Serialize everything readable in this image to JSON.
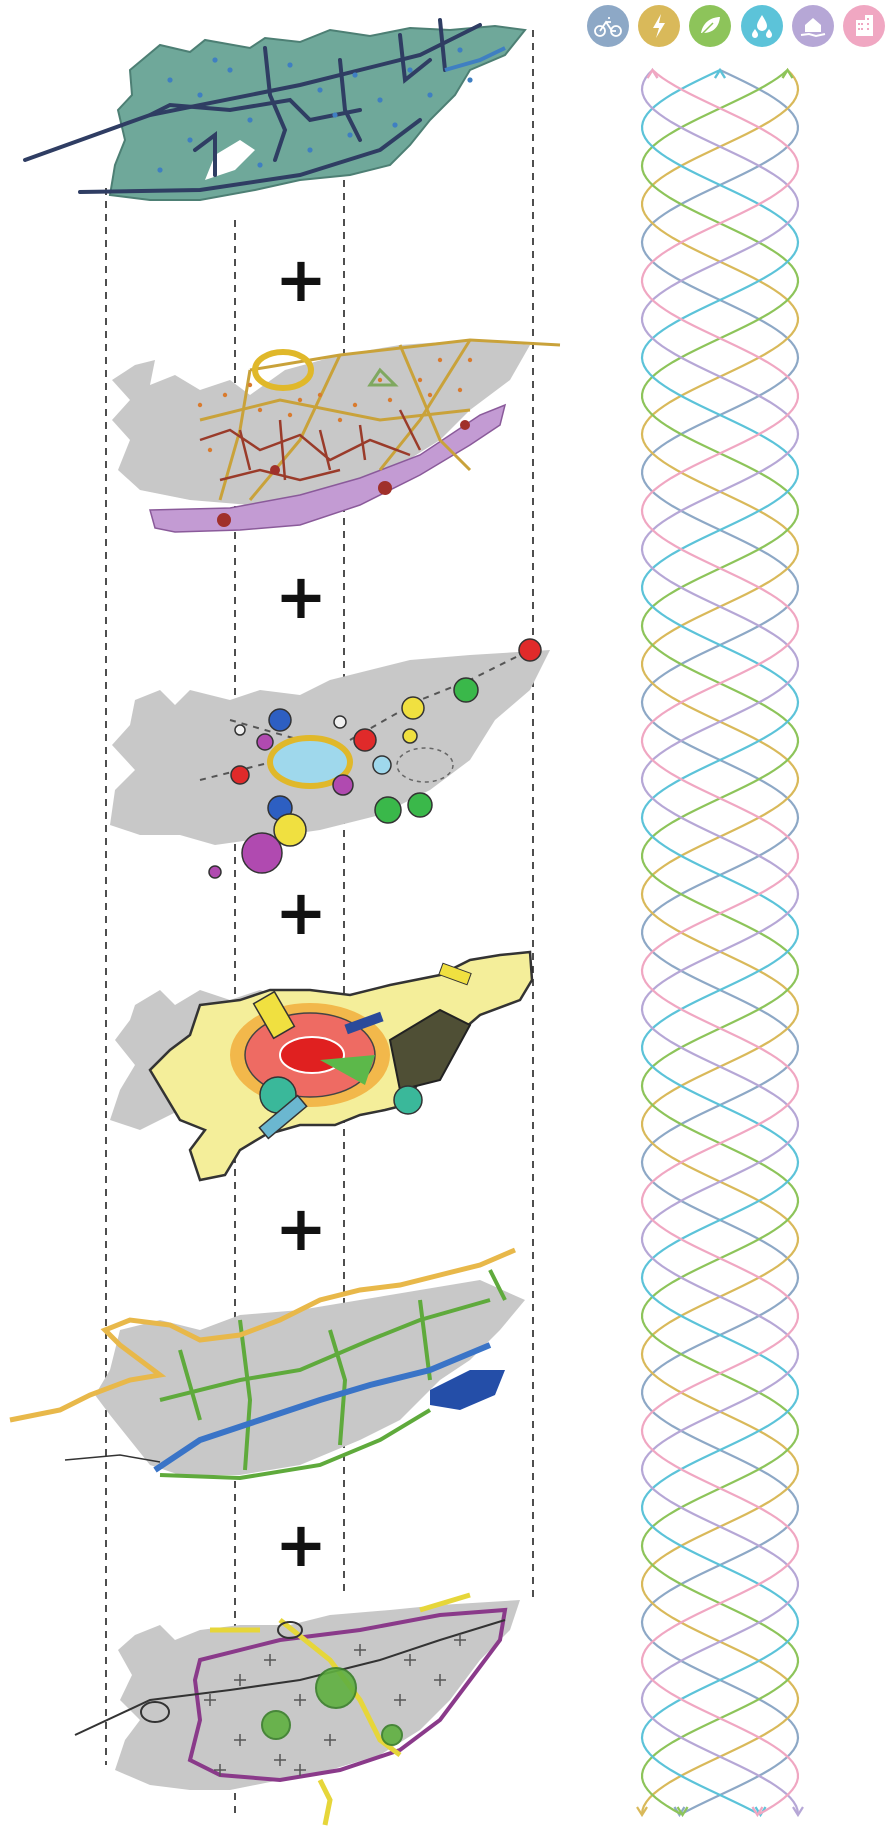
{
  "layers": [
    {
      "id": "water-network",
      "colors": {
        "base": "#6fa89a",
        "line": "#2f3d63",
        "dot": "#3f7fc2",
        "green": "#6aa84f"
      }
    },
    {
      "id": "ecological-network",
      "colors": {
        "base": "#c8c8c8",
        "ring": "#e0b82a",
        "road": "#c9a23a",
        "path": "#9a3b2a",
        "band": "#c39bd3",
        "dots": "#d97b2e"
      }
    },
    {
      "id": "energy-nodes",
      "colors": {
        "base": "#c8c8c8",
        "center": "#9fd8ec",
        "ring": "#e0b82a"
      }
    },
    {
      "id": "land-use-zones",
      "colors": {
        "outer": "#f4ee9a",
        "mid": "#f2b84b",
        "inner": "#ee6b63",
        "core": "#e02020",
        "teal": "#3ab89a",
        "olive": "#4f4f35"
      }
    },
    {
      "id": "blue-green-corridors",
      "colors": {
        "base": "#c8c8c8",
        "green": "#5faa3c",
        "blue": "#3a74c7",
        "coast": "#e8b84a",
        "deep": "#244ea8"
      }
    },
    {
      "id": "transport-axes",
      "colors": {
        "base": "#c8c8c8",
        "purple": "#8a3a8a",
        "yellow": "#e6d63a",
        "green": "#5fb040",
        "dark": "#333333"
      }
    }
  ],
  "plus_signs": [
    "+",
    "+",
    "+",
    "+",
    "+"
  ],
  "theme_icons": [
    {
      "name": "bicycle-icon",
      "color": "#8da8c6"
    },
    {
      "name": "lightning-icon",
      "color": "#d9b95a"
    },
    {
      "name": "leaf-icon",
      "color": "#8dc45a"
    },
    {
      "name": "water-drops-icon",
      "color": "#5cc3d9"
    },
    {
      "name": "house-hand-icon",
      "color": "#b6a7d6"
    },
    {
      "name": "buildings-icon",
      "color": "#f0a7c2"
    }
  ],
  "helix_colors": [
    "#8da8c6",
    "#d9b95a",
    "#8dc45a",
    "#5cc3d9",
    "#b6a7d6",
    "#f0a7c2"
  ]
}
